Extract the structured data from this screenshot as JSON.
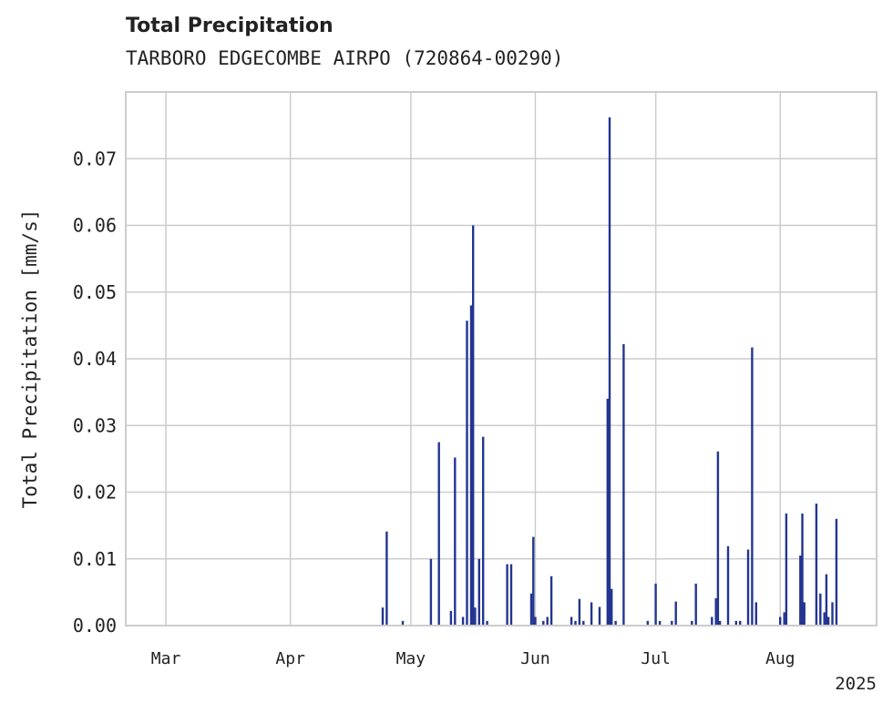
{
  "chart_data": {
    "type": "bar",
    "title": "Total Precipitation",
    "subtitle": "TARBORO EDGECOMBE AIRPO (720864-00290)",
    "xlabel": "",
    "ylabel": "Total Precipitation [mm/s]",
    "year_label": "2025",
    "xlim": [
      "2025-02-19",
      "2025-08-25"
    ],
    "ylim": [
      0,
      0.08
    ],
    "yticks": [
      "0.00",
      "0.01",
      "0.02",
      "0.03",
      "0.04",
      "0.05",
      "0.06",
      "0.07"
    ],
    "xticks": [
      {
        "date": "2025-03-01",
        "label": "Mar"
      },
      {
        "date": "2025-04-01",
        "label": "Apr"
      },
      {
        "date": "2025-05-01",
        "label": "May"
      },
      {
        "date": "2025-06-01",
        "label": "Jun"
      },
      {
        "date": "2025-07-01",
        "label": "Jul"
      },
      {
        "date": "2025-08-01",
        "label": "Aug"
      }
    ],
    "grid": true,
    "series": [
      {
        "color": "#233591",
        "points": [
          [
            "2025-04-24",
            0.0027
          ],
          [
            "2025-04-25",
            0.0141
          ],
          [
            "2025-04-29",
            0.0007
          ],
          [
            "2025-05-06",
            0.01
          ],
          [
            "2025-05-08",
            0.0275
          ],
          [
            "2025-05-11",
            0.0022
          ],
          [
            "2025-05-12",
            0.0252
          ],
          [
            "2025-05-14",
            0.0013
          ],
          [
            "2025-05-15",
            0.0457
          ],
          [
            "2025-05-16",
            0.048
          ],
          [
            "2025-05-16T12",
            0.06
          ],
          [
            "2025-05-17",
            0.0027
          ],
          [
            "2025-05-18",
            0.01
          ],
          [
            "2025-05-19",
            0.0283
          ],
          [
            "2025-05-20",
            0.0007
          ],
          [
            "2025-05-25",
            0.0092
          ],
          [
            "2025-05-26",
            0.0092
          ],
          [
            "2025-05-31",
            0.0048
          ],
          [
            "2025-05-31T12",
            0.0133
          ],
          [
            "2025-06-01",
            0.0013
          ],
          [
            "2025-06-03",
            0.0007
          ],
          [
            "2025-06-04",
            0.0013
          ],
          [
            "2025-06-05",
            0.0074
          ],
          [
            "2025-06-10",
            0.0013
          ],
          [
            "2025-06-11",
            0.0007
          ],
          [
            "2025-06-12",
            0.004
          ],
          [
            "2025-06-13",
            0.0007
          ],
          [
            "2025-06-15",
            0.0035
          ],
          [
            "2025-06-17",
            0.0028
          ],
          [
            "2025-06-19",
            0.034
          ],
          [
            "2025-06-19T12",
            0.0762
          ],
          [
            "2025-06-20",
            0.0055
          ],
          [
            "2025-06-21",
            0.0007
          ],
          [
            "2025-06-23",
            0.0422
          ],
          [
            "2025-06-29",
            0.0007
          ],
          [
            "2025-07-01",
            0.0063
          ],
          [
            "2025-07-02",
            0.0007
          ],
          [
            "2025-07-05",
            0.0007
          ],
          [
            "2025-07-06",
            0.0036
          ],
          [
            "2025-07-10",
            0.0007
          ],
          [
            "2025-07-11",
            0.0063
          ],
          [
            "2025-07-15",
            0.0013
          ],
          [
            "2025-07-16",
            0.0041
          ],
          [
            "2025-07-16T12",
            0.0261
          ],
          [
            "2025-07-17",
            0.0007
          ],
          [
            "2025-07-19",
            0.0119
          ],
          [
            "2025-07-21",
            0.0007
          ],
          [
            "2025-07-22",
            0.0007
          ],
          [
            "2025-07-24",
            0.0114
          ],
          [
            "2025-07-25",
            0.0417
          ],
          [
            "2025-07-26",
            0.0035
          ],
          [
            "2025-08-01",
            0.0013
          ],
          [
            "2025-08-02",
            0.002
          ],
          [
            "2025-08-02T12",
            0.0168
          ],
          [
            "2025-08/06",
            0.0105
          ],
          [
            "2025-08-06T12",
            0.0168
          ],
          [
            "2025-08-07",
            0.0035
          ],
          [
            "2025-08-10",
            0.0183
          ],
          [
            "2025-08-11",
            0.0048
          ],
          [
            "2025-08-12",
            0.002
          ],
          [
            "2025-08-12T12",
            0.0077
          ],
          [
            "2025-08-13",
            0.0013
          ],
          [
            "2025-08-14",
            0.0035
          ],
          [
            "2025-08-15",
            0.016
          ]
        ]
      }
    ]
  }
}
